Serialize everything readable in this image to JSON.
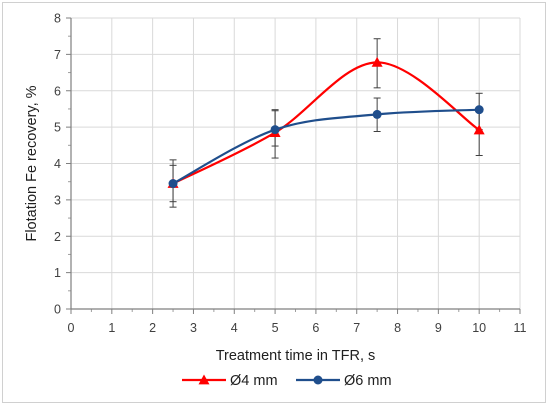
{
  "chart_data": {
    "type": "line",
    "xlabel": "Treatment time in TFR, s",
    "ylabel": "Flotation Fe recovery, %",
    "xlim": [
      0,
      11
    ],
    "ylim": [
      0,
      8
    ],
    "xticks": [
      "0",
      "1",
      "2",
      "3",
      "4",
      "5",
      "6",
      "7",
      "8",
      "9",
      "10",
      "11"
    ],
    "yticks": [
      "0",
      "1",
      "2",
      "3",
      "4",
      "5",
      "6",
      "7",
      "8"
    ],
    "grid": true,
    "legend_position": "bottom",
    "series": [
      {
        "name": "Ø4 mm",
        "color": "#ff0000",
        "marker": "triangle",
        "x": [
          2.5,
          5,
          7.5,
          10
        ],
        "y": [
          3.45,
          4.85,
          6.78,
          4.92
        ],
        "err_low": [
          0.65,
          0.7,
          0.7,
          0.7
        ],
        "err_high": [
          0.65,
          0.6,
          0.65,
          0.6
        ]
      },
      {
        "name": "Ø6 mm",
        "color": "#1f4e8c",
        "marker": "circle",
        "x": [
          2.5,
          5,
          7.5,
          10
        ],
        "y": [
          3.45,
          4.93,
          5.35,
          5.48
        ],
        "err_low": [
          0.5,
          0.45,
          0.47,
          0.55
        ],
        "err_high": [
          0.5,
          0.55,
          0.45,
          0.45
        ]
      }
    ]
  }
}
